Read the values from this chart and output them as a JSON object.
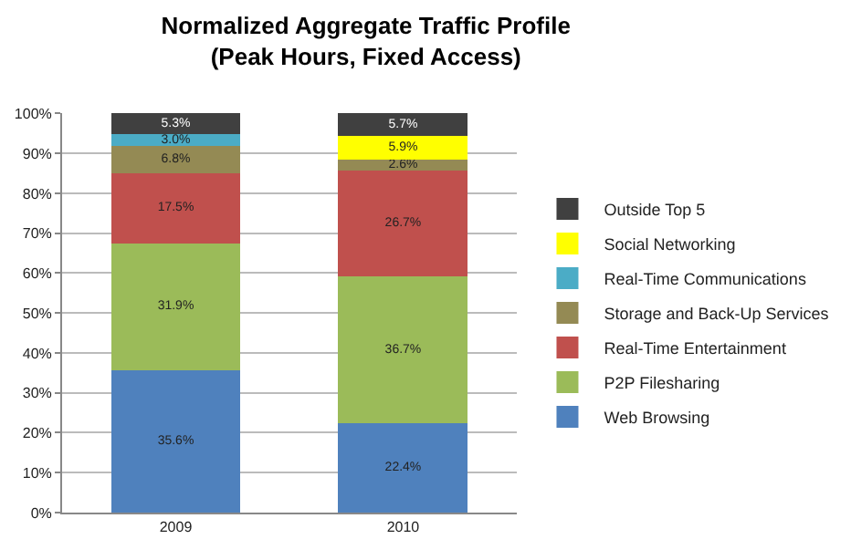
{
  "chart_data": {
    "type": "bar",
    "stacked": true,
    "title": "Normalized Aggregate Traffic Profile\n(Peak Hours, Fixed Access)",
    "categories": [
      "2009",
      "2010"
    ],
    "series": [
      {
        "name": "Web Browsing",
        "color": "#4f81bd",
        "values": [
          35.6,
          22.4
        ],
        "value_labels": [
          "35.6%",
          "22.4%"
        ]
      },
      {
        "name": "P2P Filesharing",
        "color": "#9bbb59",
        "values": [
          31.9,
          36.7
        ],
        "value_labels": [
          "31.9%",
          "36.7%"
        ]
      },
      {
        "name": "Real-Time Entertainment",
        "color": "#c0504d",
        "values": [
          17.5,
          26.7
        ],
        "value_labels": [
          "17.5%",
          "26.7%"
        ]
      },
      {
        "name": "Storage and Back-Up Services",
        "color": "#948a54",
        "values": [
          6.8,
          2.6
        ],
        "value_labels": [
          "6.8%",
          "2.6%"
        ]
      },
      {
        "name": "Real-Time Communications",
        "color": "#4bacc6",
        "values": [
          3.0,
          null
        ],
        "value_labels": [
          "3.0%",
          null
        ]
      },
      {
        "name": "Social Networking",
        "color": "#ffff00",
        "values": [
          null,
          5.9
        ],
        "value_labels": [
          null,
          "5.9%"
        ]
      },
      {
        "name": "Outside Top 5",
        "color": "#404040",
        "values": [
          5.3,
          5.7
        ],
        "value_labels": [
          "5.3%",
          "5.7%"
        ]
      }
    ],
    "ylim": [
      0,
      100.1
    ],
    "yticks": [
      {
        "value": 0,
        "label": "0%"
      },
      {
        "value": 10,
        "label": "10%"
      },
      {
        "value": 20,
        "label": "20%"
      },
      {
        "value": 30,
        "label": "30%"
      },
      {
        "value": 40,
        "label": "40%"
      },
      {
        "value": 50,
        "label": "50%"
      },
      {
        "value": 60,
        "label": "60%"
      },
      {
        "value": 70,
        "label": "70%"
      },
      {
        "value": 80,
        "label": "80%"
      },
      {
        "value": 90,
        "label": "90%"
      },
      {
        "value": 100,
        "label": "100%"
      }
    ],
    "grid": "y",
    "legend": "right"
  }
}
